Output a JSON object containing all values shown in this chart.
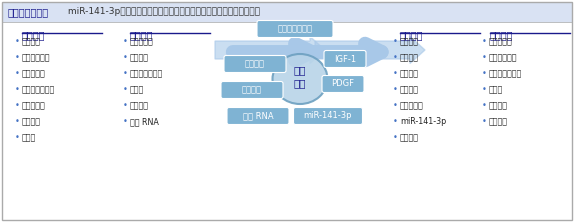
{
  "title_bold": "文章快速阅读：",
  "title_regular": " miR-141-3p可改善腰椎间盘突出症大鼠下肢疼痛及抑制背根神经节炎症",
  "header_color": "#2E5FA3",
  "box_color": "#7FB3D3",
  "box_text_color": "#FFFFFF",
  "section_title_color": "#1a1a8c",
  "bullet_color": "#4472C4",
  "bg_color": "#FFFFFF",
  "border_color": "#AAAAAA",
  "header_bg": "#D9E2F3",
  "section_titles": [
    "研究起点",
    "研究来源",
    "研究分支",
    "研究去脉"
  ],
  "col1_items": [
    "髓核细胞",
    "椎间盘突出症",
    "椎间盘移位",
    "腰椎间盘突出症",
    "白细胞介素",
    "炎症因子",
    "细胞凋"
  ],
  "col2_items": [
    "椎间盘退变",
    "髓核细胞",
    "腰椎间盘突出症",
    "下肢痛",
    "生长因子",
    "微小 RNA"
  ],
  "col3_items": [
    "髓核细胞",
    "蛋白表达",
    "动物模型",
    "生长因子",
    "白细胞介素",
    "miR-141-3p",
    "炎症因子"
  ],
  "col4_items": [
    "椎间盘移位",
    "椎间盘突出症",
    "背根神经节炎症",
    "下肢痛",
    "动物模型",
    "治疗靶点"
  ],
  "center_boxes": [
    "腰椎间盘突出症",
    "髓核细胞",
    "生长因子",
    "微小 RNA",
    "miR-141-3p"
  ],
  "side_boxes": [
    "IGF-1",
    "PDGF"
  ],
  "center_label": "关注\n热点",
  "arrow_color": "#A8C8E8"
}
